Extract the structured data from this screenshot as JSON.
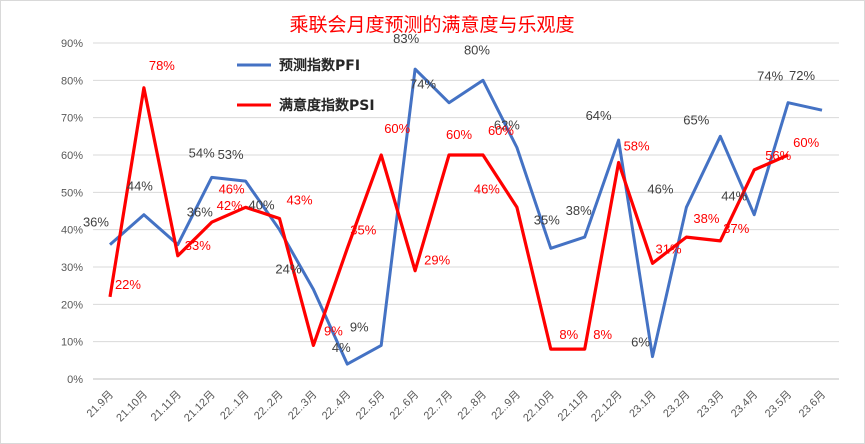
{
  "chart_data": {
    "type": "line",
    "title": "乘联会月度预测的满意度与乐观度",
    "categories": [
      "21.9月",
      "21.10月",
      "21.11月",
      "21.12月",
      "22..1月",
      "22..2月",
      "22..3月",
      "22..4月",
      "22..5月",
      "22..6月",
      "22..7月",
      "22..8月",
      "22..9月",
      "22.10月",
      "22.11月",
      "22.12月",
      "23.1月",
      "23.2月",
      "23.3月",
      "23.4月",
      "23.5月",
      "23.6月"
    ],
    "ylim": [
      0,
      90
    ],
    "yticks": [
      "0%",
      "10%",
      "20%",
      "30%",
      "40%",
      "50%",
      "60%",
      "70%",
      "80%",
      "90%"
    ],
    "grid": true,
    "legend_position": "top-left",
    "series": [
      {
        "name": "预测指数PFI",
        "color": "#4472c4",
        "values": [
          36,
          44,
          36,
          54,
          53,
          40,
          24,
          4,
          9,
          83,
          74,
          80,
          62,
          35,
          38,
          64,
          6,
          46,
          65,
          44,
          74,
          72
        ],
        "labels": [
          "36%",
          "44%",
          "36%",
          "54%",
          "53%",
          "40%",
          "24%",
          "4%",
          "9%",
          "83%",
          "74%",
          "80%",
          "62%",
          "35%",
          "38%",
          "64%",
          "6%",
          "46%",
          "65%",
          "44%",
          "74%",
          "72%"
        ]
      },
      {
        "name": "满意度指数PSI",
        "color": "#ff0000",
        "values": [
          22,
          78,
          33,
          42,
          46,
          43,
          9,
          35,
          60,
          29,
          60,
          60,
          46,
          8,
          8,
          58,
          31,
          38,
          37,
          56,
          60,
          null
        ],
        "labels": [
          "22%",
          "78%",
          "33%",
          "42%",
          "46%",
          "43%",
          "9%",
          "35%",
          "60%",
          "29%",
          "60%",
          "60%",
          "46%",
          "8%",
          "8%",
          "58%",
          "31%",
          "38%",
          "37%",
          "56%",
          "60%",
          ""
        ]
      }
    ]
  }
}
